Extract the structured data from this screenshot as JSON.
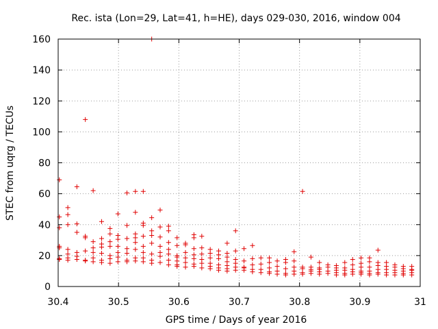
{
  "chart_data": {
    "type": "scatter",
    "title": "Rec. ista (Lon=29, Lat=41, h=HE), days 029-030, 2016, window 004",
    "xlabel": "GPS time / Days of year 2016",
    "ylabel": "STEC from uqrg / TECUs",
    "xlim": [
      30.4,
      31.0
    ],
    "ylim": [
      0,
      160
    ],
    "xticks": [
      "30.4",
      "30.5",
      "30.6",
      "30.7",
      "30.8",
      "30.9",
      "31"
    ],
    "yticks": [
      "0",
      "20",
      "40",
      "60",
      "80",
      "100",
      "120",
      "140",
      "160"
    ],
    "grid": true,
    "marker": "plus",
    "color": "#e00000",
    "points": [
      [
        30.402,
        69
      ],
      [
        30.402,
        45
      ],
      [
        30.402,
        38
      ],
      [
        30.402,
        26
      ],
      [
        30.402,
        25
      ],
      [
        30.402,
        18
      ],
      [
        30.402,
        17.5
      ],
      [
        30.416,
        51
      ],
      [
        30.416,
        46.5
      ],
      [
        30.416,
        40
      ],
      [
        30.416,
        24
      ],
      [
        30.416,
        21
      ],
      [
        30.416,
        18.5
      ],
      [
        30.416,
        17
      ],
      [
        30.431,
        64.5
      ],
      [
        30.431,
        40.5
      ],
      [
        30.431,
        35
      ],
      [
        30.431,
        22
      ],
      [
        30.431,
        19.5
      ],
      [
        30.431,
        17.5
      ],
      [
        30.445,
        108
      ],
      [
        30.445,
        32.5
      ],
      [
        30.445,
        31.5
      ],
      [
        30.445,
        23
      ],
      [
        30.445,
        17
      ],
      [
        30.445,
        16.5
      ],
      [
        30.458,
        62
      ],
      [
        30.458,
        29
      ],
      [
        30.458,
        25
      ],
      [
        30.458,
        22
      ],
      [
        30.458,
        18.5
      ],
      [
        30.458,
        16
      ],
      [
        30.472,
        42
      ],
      [
        30.472,
        31
      ],
      [
        30.472,
        27.5
      ],
      [
        30.472,
        25.5
      ],
      [
        30.472,
        21.5
      ],
      [
        30.472,
        17
      ],
      [
        30.472,
        15.5
      ],
      [
        30.486,
        37.5
      ],
      [
        30.486,
        34
      ],
      [
        30.486,
        29
      ],
      [
        30.486,
        26
      ],
      [
        30.486,
        20
      ],
      [
        30.486,
        18
      ],
      [
        30.486,
        15
      ],
      [
        30.499,
        47
      ],
      [
        30.499,
        33
      ],
      [
        30.499,
        30.5
      ],
      [
        30.499,
        26
      ],
      [
        30.499,
        22
      ],
      [
        30.499,
        19
      ],
      [
        30.499,
        16
      ],
      [
        30.514,
        60.5
      ],
      [
        30.514,
        39.5
      ],
      [
        30.514,
        31
      ],
      [
        30.514,
        24.5
      ],
      [
        30.514,
        21.5
      ],
      [
        30.514,
        17
      ],
      [
        30.514,
        16
      ],
      [
        30.528,
        61.5
      ],
      [
        30.528,
        48
      ],
      [
        30.528,
        34
      ],
      [
        30.528,
        31.5
      ],
      [
        30.528,
        28.5
      ],
      [
        30.528,
        24
      ],
      [
        30.528,
        18.5
      ],
      [
        30.528,
        16.5
      ],
      [
        30.541,
        61.5
      ],
      [
        30.541,
        41
      ],
      [
        30.541,
        39.5
      ],
      [
        30.541,
        32.5
      ],
      [
        30.541,
        26
      ],
      [
        30.541,
        22
      ],
      [
        30.541,
        18.5
      ],
      [
        30.541,
        16
      ],
      [
        30.555,
        160
      ],
      [
        30.555,
        44.5
      ],
      [
        30.555,
        36
      ],
      [
        30.555,
        33
      ],
      [
        30.555,
        28
      ],
      [
        30.555,
        21
      ],
      [
        30.555,
        17
      ],
      [
        30.555,
        15
      ],
      [
        30.569,
        49.5
      ],
      [
        30.569,
        38.5
      ],
      [
        30.569,
        32
      ],
      [
        30.569,
        26
      ],
      [
        30.569,
        22
      ],
      [
        30.569,
        19.5
      ],
      [
        30.569,
        15.5
      ],
      [
        30.583,
        39
      ],
      [
        30.583,
        36
      ],
      [
        30.583,
        28.5
      ],
      [
        30.583,
        24
      ],
      [
        30.583,
        21
      ],
      [
        30.583,
        17
      ],
      [
        30.583,
        14
      ],
      [
        30.597,
        31.5
      ],
      [
        30.597,
        26.5
      ],
      [
        30.597,
        20
      ],
      [
        30.597,
        19
      ],
      [
        30.597,
        16.5
      ],
      [
        30.597,
        14
      ],
      [
        30.597,
        13
      ],
      [
        30.611,
        28
      ],
      [
        30.611,
        27
      ],
      [
        30.611,
        22
      ],
      [
        30.611,
        18.5
      ],
      [
        30.611,
        15.5
      ],
      [
        30.611,
        12.5
      ],
      [
        30.625,
        33.5
      ],
      [
        30.625,
        31.5
      ],
      [
        30.625,
        24.5
      ],
      [
        30.625,
        20.5
      ],
      [
        30.625,
        18
      ],
      [
        30.625,
        14.5
      ],
      [
        30.625,
        13
      ],
      [
        30.638,
        32.5
      ],
      [
        30.638,
        25
      ],
      [
        30.638,
        21
      ],
      [
        30.638,
        17.5
      ],
      [
        30.638,
        15
      ],
      [
        30.638,
        12
      ],
      [
        30.652,
        24
      ],
      [
        30.652,
        21.5
      ],
      [
        30.652,
        18.5
      ],
      [
        30.652,
        15
      ],
      [
        30.652,
        13
      ],
      [
        30.652,
        11.5
      ],
      [
        30.666,
        23
      ],
      [
        30.666,
        20.5
      ],
      [
        30.666,
        18
      ],
      [
        30.666,
        14
      ],
      [
        30.666,
        12
      ],
      [
        30.666,
        10.5
      ],
      [
        30.68,
        28
      ],
      [
        30.68,
        21.5
      ],
      [
        30.68,
        19
      ],
      [
        30.68,
        16
      ],
      [
        30.68,
        13.5
      ],
      [
        30.68,
        11.5
      ],
      [
        30.68,
        10
      ],
      [
        30.694,
        36
      ],
      [
        30.694,
        23
      ],
      [
        30.694,
        17.5
      ],
      [
        30.694,
        15
      ],
      [
        30.694,
        12.5
      ],
      [
        30.694,
        10.5
      ],
      [
        30.708,
        24.5
      ],
      [
        30.708,
        16.5
      ],
      [
        30.708,
        12.5
      ],
      [
        30.708,
        12
      ],
      [
        30.708,
        10.5
      ],
      [
        30.722,
        26.5
      ],
      [
        30.722,
        18
      ],
      [
        30.722,
        14
      ],
      [
        30.722,
        11
      ],
      [
        30.722,
        9.5
      ],
      [
        30.736,
        18.5
      ],
      [
        30.736,
        14.5
      ],
      [
        30.736,
        11
      ],
      [
        30.736,
        9
      ],
      [
        30.75,
        18.5
      ],
      [
        30.75,
        15.5
      ],
      [
        30.75,
        12
      ],
      [
        30.75,
        9.5
      ],
      [
        30.75,
        8.5
      ],
      [
        30.763,
        16.5
      ],
      [
        30.763,
        13
      ],
      [
        30.763,
        10
      ],
      [
        30.763,
        8
      ],
      [
        30.777,
        17.5
      ],
      [
        30.777,
        15.5
      ],
      [
        30.777,
        11.5
      ],
      [
        30.777,
        8.5
      ],
      [
        30.777,
        7.5
      ],
      [
        30.791,
        22.5
      ],
      [
        30.791,
        16.5
      ],
      [
        30.791,
        12.5
      ],
      [
        30.791,
        10
      ],
      [
        30.791,
        8
      ],
      [
        30.805,
        61.5
      ],
      [
        30.805,
        12.5
      ],
      [
        30.805,
        11.5
      ],
      [
        30.805,
        9
      ],
      [
        30.805,
        8
      ],
      [
        30.819,
        19
      ],
      [
        30.819,
        12.5
      ],
      [
        30.819,
        11
      ],
      [
        30.819,
        10
      ],
      [
        30.819,
        8.5
      ],
      [
        30.833,
        15.5
      ],
      [
        30.833,
        12
      ],
      [
        30.833,
        11
      ],
      [
        30.833,
        9.5
      ],
      [
        30.833,
        8
      ],
      [
        30.847,
        14
      ],
      [
        30.847,
        12.5
      ],
      [
        30.847,
        10
      ],
      [
        30.847,
        8.5
      ],
      [
        30.861,
        13.5
      ],
      [
        30.861,
        12
      ],
      [
        30.861,
        10.5
      ],
      [
        30.861,
        9
      ],
      [
        30.861,
        7.5
      ],
      [
        30.875,
        15.5
      ],
      [
        30.875,
        12
      ],
      [
        30.875,
        10.5
      ],
      [
        30.875,
        8.5
      ],
      [
        30.875,
        7.5
      ],
      [
        30.888,
        17.5
      ],
      [
        30.888,
        14
      ],
      [
        30.888,
        11
      ],
      [
        30.888,
        9.5
      ],
      [
        30.888,
        8
      ],
      [
        30.902,
        18.5
      ],
      [
        30.902,
        15
      ],
      [
        30.902,
        12.5
      ],
      [
        30.902,
        10
      ],
      [
        30.902,
        9
      ],
      [
        30.902,
        8
      ],
      [
        30.916,
        18.5
      ],
      [
        30.916,
        16
      ],
      [
        30.916,
        12.5
      ],
      [
        30.916,
        10
      ],
      [
        30.916,
        8.5
      ],
      [
        30.916,
        7.5
      ],
      [
        30.93,
        23.5
      ],
      [
        30.93,
        15.5
      ],
      [
        30.93,
        13.5
      ],
      [
        30.93,
        11
      ],
      [
        30.93,
        9
      ],
      [
        30.93,
        8
      ],
      [
        30.944,
        15.5
      ],
      [
        30.944,
        13
      ],
      [
        30.944,
        11
      ],
      [
        30.944,
        9
      ],
      [
        30.944,
        7.5
      ],
      [
        30.958,
        14
      ],
      [
        30.958,
        12.5
      ],
      [
        30.958,
        10.5
      ],
      [
        30.958,
        9
      ],
      [
        30.958,
        7.5
      ],
      [
        30.972,
        13
      ],
      [
        30.972,
        11.5
      ],
      [
        30.972,
        10
      ],
      [
        30.972,
        8.5
      ],
      [
        30.972,
        7.5
      ],
      [
        30.986,
        13
      ],
      [
        30.986,
        11
      ],
      [
        30.986,
        10.5
      ],
      [
        30.986,
        9
      ],
      [
        30.986,
        7.5
      ]
    ]
  }
}
